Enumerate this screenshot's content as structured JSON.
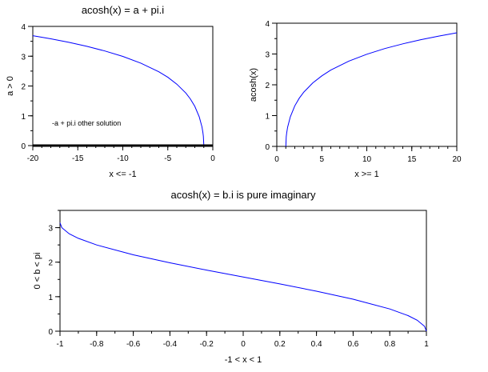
{
  "chart_data": [
    {
      "type": "line",
      "title": "acosh(x) = a + pi.i",
      "xlabel": "x <= -1",
      "ylabel": "a > 0",
      "xlim": [
        -20,
        0
      ],
      "ylim": [
        0,
        4
      ],
      "xticks": [
        -20,
        -15,
        -10,
        -5,
        0
      ],
      "yticks": [
        0,
        1,
        2,
        3,
        4
      ],
      "annotation": "-a + pi.i other solution",
      "grid": false,
      "series": [
        {
          "color": "#0000ff",
          "x": [
            -20,
            -18,
            -16,
            -14,
            -12,
            -10,
            -8,
            -6,
            -5,
            -4,
            -3,
            -2.5,
            -2,
            -1.5,
            -1.2,
            -1.1,
            -1.05,
            -1
          ],
          "y": [
            3.689,
            3.583,
            3.465,
            3.331,
            3.176,
            2.993,
            2.769,
            2.478,
            2.292,
            2.063,
            1.763,
            1.567,
            1.317,
            0.962,
            0.622,
            0.444,
            0.314,
            0
          ]
        },
        {
          "color": "#000000",
          "x": [
            -20,
            0
          ],
          "y": [
            0,
            0
          ]
        }
      ]
    },
    {
      "type": "line",
      "title": "",
      "xlabel": "x >= 1",
      "ylabel": "acosh(x)",
      "xlim": [
        0,
        20
      ],
      "ylim": [
        0,
        4
      ],
      "xticks": [
        0,
        5,
        10,
        15,
        20
      ],
      "yticks": [
        0,
        1,
        2,
        3,
        4
      ],
      "grid": false,
      "series": [
        {
          "color": "#0000ff",
          "x": [
            1,
            1.05,
            1.1,
            1.2,
            1.5,
            2,
            2.5,
            3,
            4,
            5,
            6,
            8,
            10,
            12,
            14,
            16,
            18,
            20
          ],
          "y": [
            0,
            0.314,
            0.444,
            0.622,
            0.962,
            1.317,
            1.567,
            1.763,
            2.063,
            2.292,
            2.478,
            2.769,
            2.993,
            3.176,
            3.331,
            3.465,
            3.583,
            3.689
          ]
        }
      ]
    },
    {
      "type": "line",
      "title": "acosh(x) = b.i  is pure imaginary",
      "xlabel": "-1 < x < 1",
      "ylabel": "0 < b < pi",
      "xlim": [
        -1,
        1
      ],
      "ylim": [
        0,
        3.5
      ],
      "xticks": [
        -1,
        -0.8,
        -0.6,
        -0.4,
        -0.2,
        0,
        0.2,
        0.4,
        0.6,
        0.8,
        1
      ],
      "yticks": [
        0,
        1,
        2,
        3
      ],
      "grid": false,
      "series": [
        {
          "color": "#0000ff",
          "x": [
            -1,
            -0.99,
            -0.95,
            -0.9,
            -0.8,
            -0.6,
            -0.4,
            -0.2,
            0,
            0.2,
            0.4,
            0.6,
            0.8,
            0.9,
            0.95,
            0.99,
            1
          ],
          "y": [
            3.1416,
            3.0,
            2.824,
            2.691,
            2.498,
            2.214,
            1.982,
            1.772,
            1.571,
            1.369,
            1.159,
            0.927,
            0.644,
            0.451,
            0.318,
            0.142,
            0
          ]
        }
      ]
    }
  ]
}
